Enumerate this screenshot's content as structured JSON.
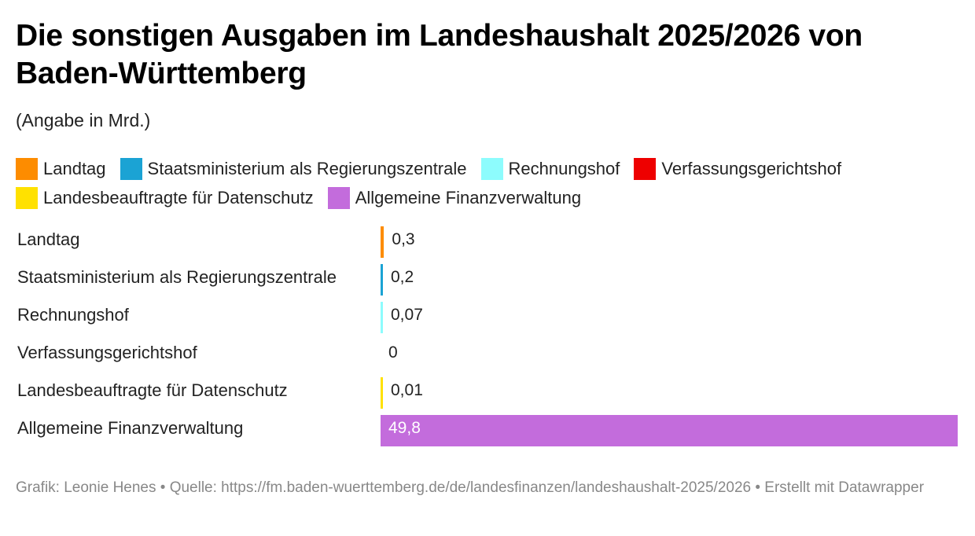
{
  "header": {
    "title": "Die sonstigen Ausgaben im Landeshaushalt 2025/2026 von Baden-Württemberg",
    "subtitle": "(Angabe in Mrd.)"
  },
  "legend": {
    "rows": [
      [
        {
          "label": "Landtag",
          "color": "#fd8c00"
        },
        {
          "label": "Staatsministerium als Regierungszentrale",
          "color": "#1ba3d4"
        },
        {
          "label": "Rechnungshof",
          "color": "#8dfcfd"
        },
        {
          "label": "Verfassungsgerichtshof",
          "color": "#ee0000"
        }
      ],
      [
        {
          "label": "Landesbeauftragte für Datenschutz",
          "color": "#ffe100"
        },
        {
          "label": "Allgemeine Finanzverwaltung",
          "color": "#c36cdc"
        }
      ]
    ]
  },
  "chart_data": {
    "type": "bar",
    "orientation": "horizontal",
    "title": "Die sonstigen Ausgaben im Landeshaushalt 2025/2026 von Baden-Württemberg",
    "subtitle": "(Angabe in Mrd.)",
    "xlabel": "",
    "ylabel": "",
    "xlim": [
      0,
      49.8
    ],
    "grid": false,
    "legend_position": "top",
    "categories": [
      "Landtag",
      "Staatsministerium als Regierungszentrale",
      "Rechnungshof",
      "Verfassungsgerichtshof",
      "Landesbeauftragte für Datenschutz",
      "Allgemeine Finanzverwaltung"
    ],
    "values": [
      0.3,
      0.2,
      0.07,
      0,
      0.01,
      49.8
    ],
    "value_labels": [
      "0,3",
      "0,2",
      "0,07",
      "0",
      "0,01",
      "49,8"
    ],
    "colors": [
      "#fd8c00",
      "#1ba3d4",
      "#8dfcfd",
      "#ee0000",
      "#ffe100",
      "#c36cdc"
    ]
  },
  "footer": {
    "text": "Grafik: Leonie Henes • Quelle: https://fm.baden-wuerttemberg.de/de/landesfinanzen/landeshaushalt-2025/2026 • Erstellt mit Datawrapper"
  }
}
